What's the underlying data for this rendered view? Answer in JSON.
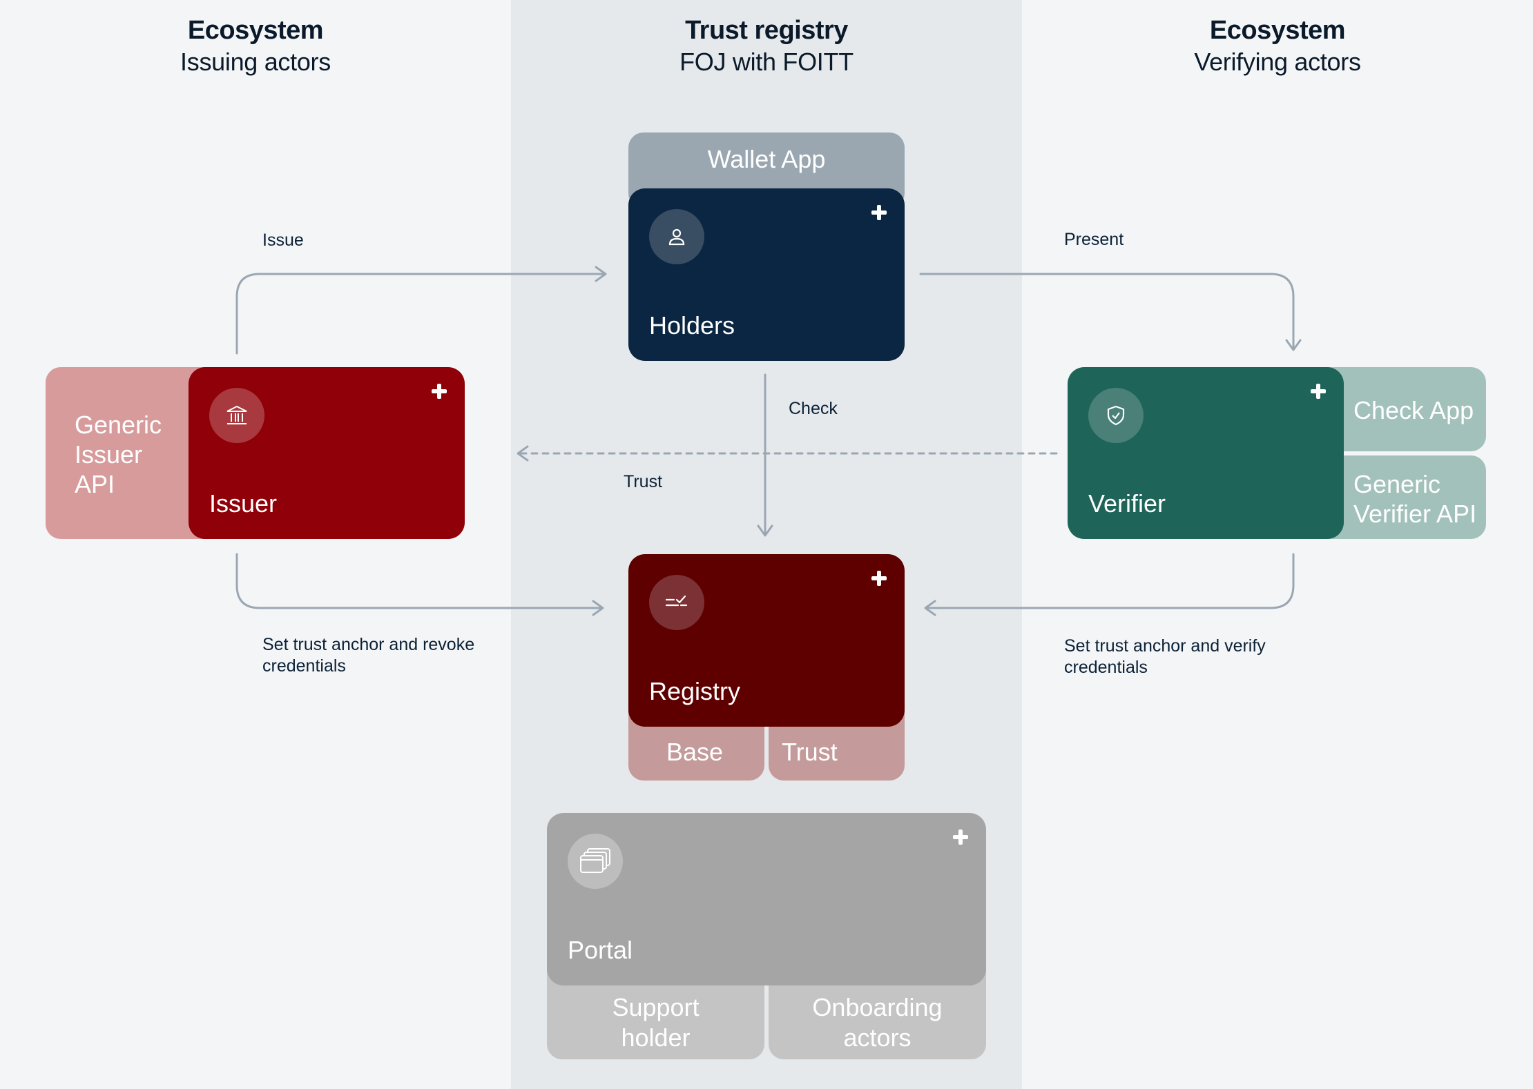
{
  "columns": {
    "left": {
      "heading": "Ecosystem",
      "subheading": "Issuing actors"
    },
    "center": {
      "heading": "Trust registry",
      "subheading": "FOJ with FOITT"
    },
    "right": {
      "heading": "Ecosystem",
      "subheading": "Verifying actors"
    }
  },
  "nodes": {
    "holders": {
      "title": "Holders",
      "tab_top": "Wallet App",
      "icon": "person-icon",
      "color": "#0b2642"
    },
    "issuer": {
      "title": "Issuer",
      "tab_left_lines": [
        "Generic",
        "Issuer",
        "API"
      ],
      "icon": "bank-icon",
      "color": "#900008"
    },
    "verifier": {
      "title": "Verifier",
      "tab_right_top": "Check App",
      "tab_right_bottom_lines": [
        "Generic",
        "Verifier API"
      ],
      "icon": "shield-check-icon",
      "color": "#1e6458"
    },
    "registry": {
      "title": "Registry",
      "tab_bottom_left": "Base",
      "tab_bottom_right": "Trust",
      "icon": "checklist-icon",
      "color": "#5e0000"
    },
    "portal": {
      "title": "Portal",
      "tab_bottom_left_lines": [
        "Support",
        "holder"
      ],
      "tab_bottom_right_lines": [
        "Onboarding",
        "actors"
      ],
      "icon": "windows-icon",
      "color": "#a5a5a5"
    }
  },
  "edges": {
    "issue": "Issue",
    "present": "Present",
    "check": "Check",
    "trust": "Trust",
    "issuer_registry_lines": [
      "Set trust anchor and revoke",
      "credentials"
    ],
    "verifier_registry_lines": [
      "Set trust anchor and verify",
      "credentials"
    ]
  }
}
